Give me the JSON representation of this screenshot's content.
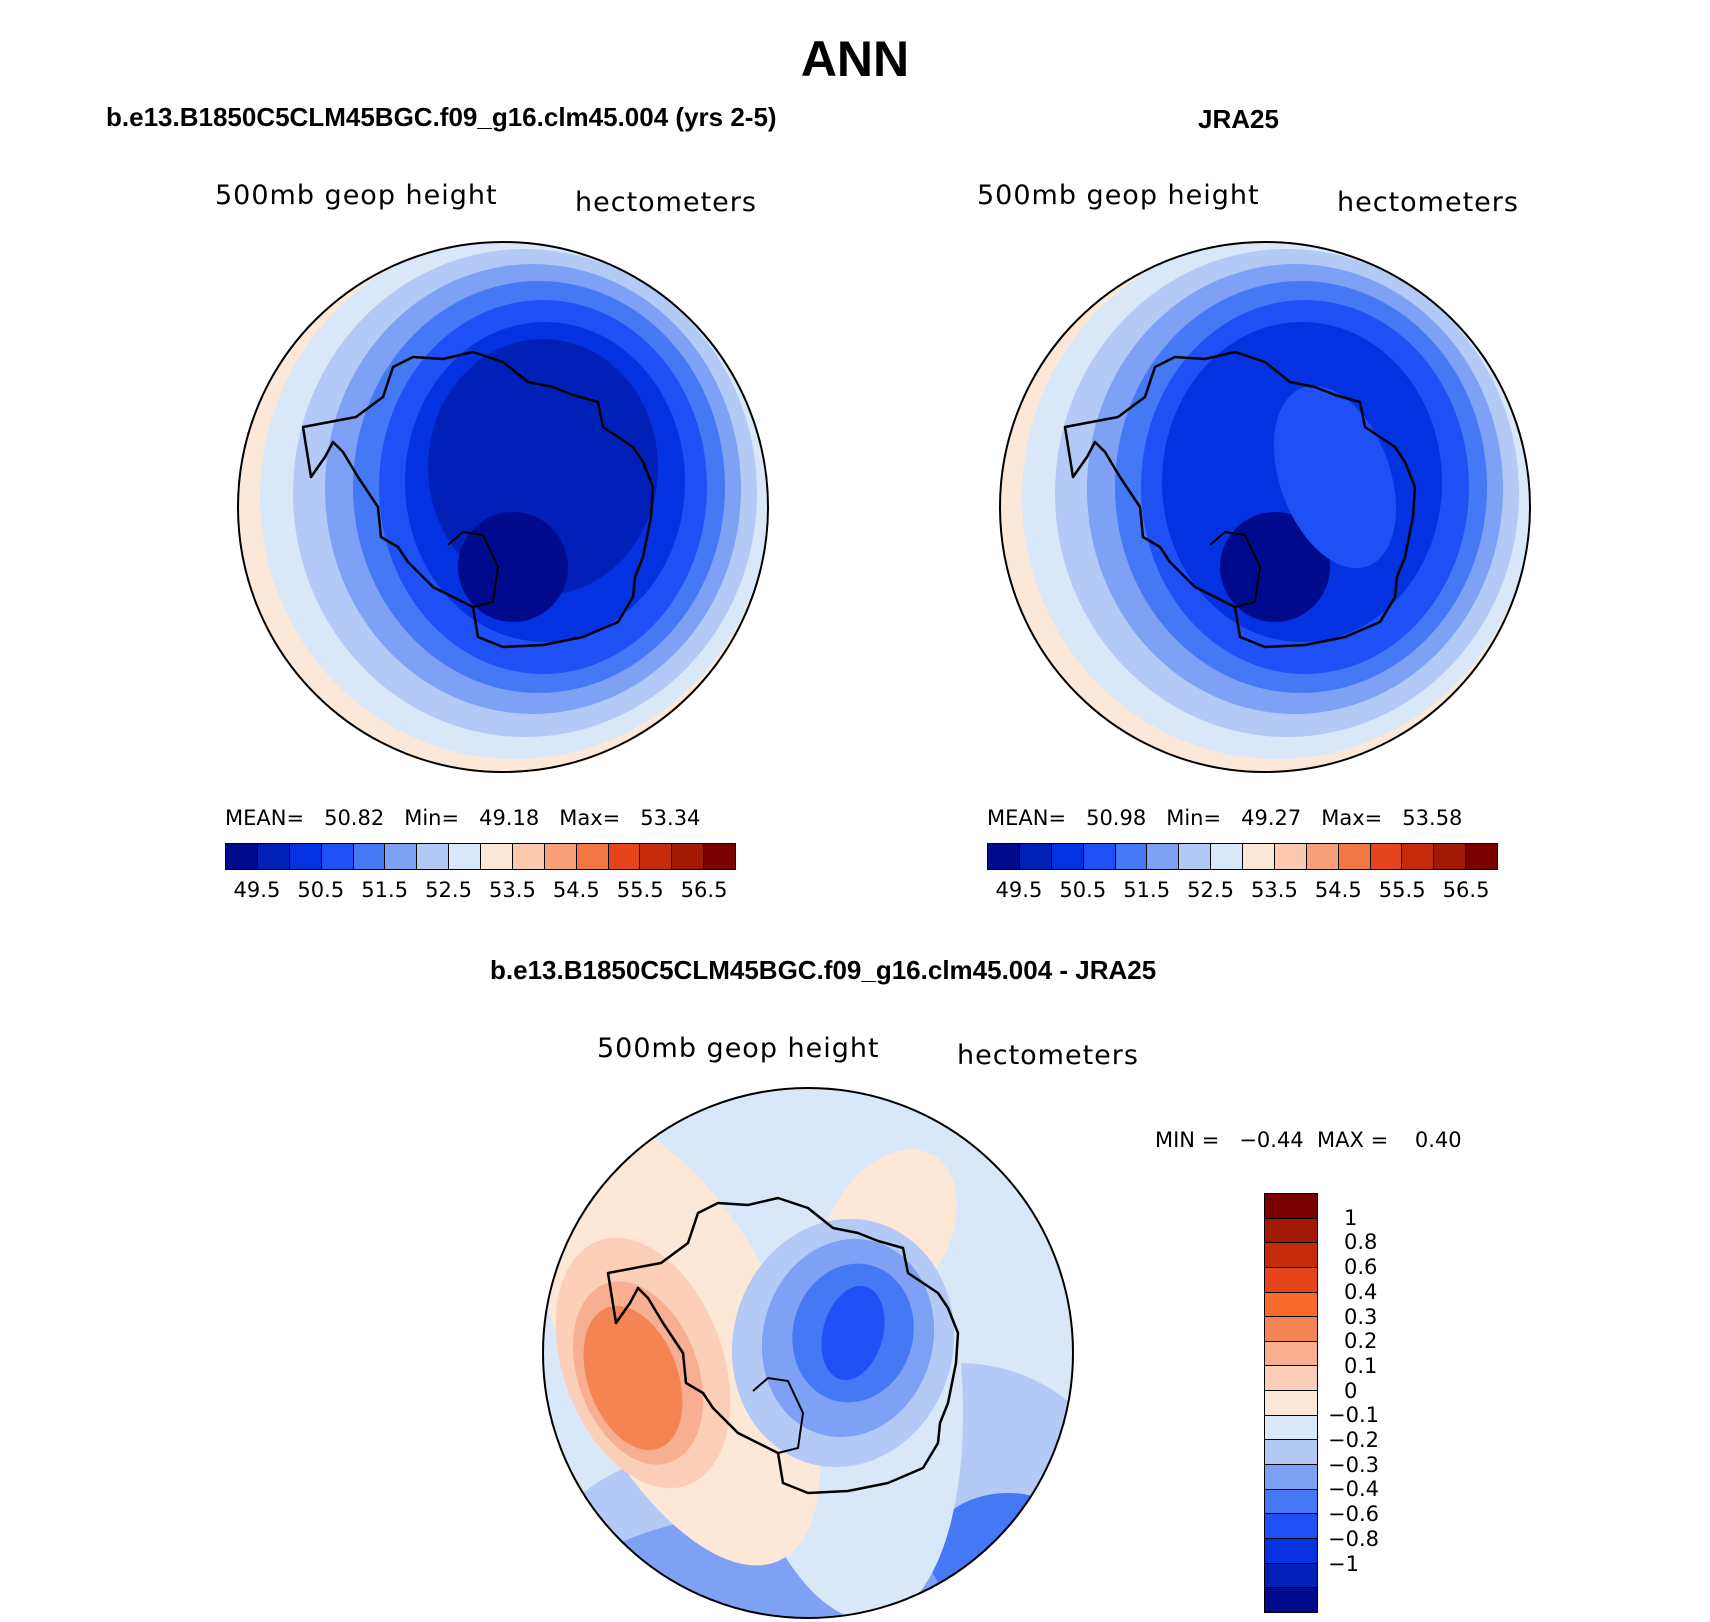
{
  "main_title": "ANN",
  "colors": {
    "abs_scale": [
      "#000a8c",
      "#0020b8",
      "#0532e1",
      "#1e50f5",
      "#4478f5",
      "#7ea0f5",
      "#b2caf5",
      "#d8e8f8",
      "#fbe8d8",
      "#fbc9ae",
      "#f8a07a",
      "#f27744",
      "#e5441c",
      "#c42b0c",
      "#a01a05",
      "#7a0000"
    ],
    "diff_scale": [
      "#7a0000",
      "#a01a05",
      "#c42b0c",
      "#e5441c",
      "#f76a2c",
      "#f58454",
      "#f8ae90",
      "#fccfb8",
      "#fde8d8",
      "#d8e8f8",
      "#b2caf5",
      "#7ea0f5",
      "#4478f5",
      "#1e50f5",
      "#0532e1",
      "#0020b8",
      "#000a8c"
    ]
  },
  "panels": [
    {
      "title": "b.e13.B1850C5CLM45BGC.f09_g16.clm45.004 (yrs 2-5)",
      "variable": "500mb  geop  height",
      "units": "hectometers",
      "stats_line": "MEAN=   50.82   Min=   49.18   Max=   53.34",
      "colorbar_ticks": [
        "49.5",
        "50.5",
        "51.5",
        "52.5",
        "53.5",
        "54.5",
        "55.5",
        "56.5"
      ]
    },
    {
      "title": "JRA25",
      "variable": "500mb  geop  height",
      "units": "hectometers",
      "stats_line": "MEAN=   50.98   Min=   49.27   Max=   53.58",
      "colorbar_ticks": [
        "49.5",
        "50.5",
        "51.5",
        "52.5",
        "53.5",
        "54.5",
        "55.5",
        "56.5"
      ]
    }
  ],
  "difference": {
    "title": "b.e13.B1850C5CLM45BGC.f09_g16.clm45.004 - JRA25",
    "variable": "500mb  geop  height",
    "units": "hectometers",
    "stats_line": "MIN =   −0.44  MAX =    0.40",
    "colorbar_ticks": [
      "1",
      "0.8",
      "0.6",
      "0.4",
      "0.3",
      "0.2",
      "0.1",
      "0",
      "−0.1",
      "−0.2",
      "−0.3",
      "−0.4",
      "−0.6",
      "−0.8",
      "−1"
    ]
  }
}
